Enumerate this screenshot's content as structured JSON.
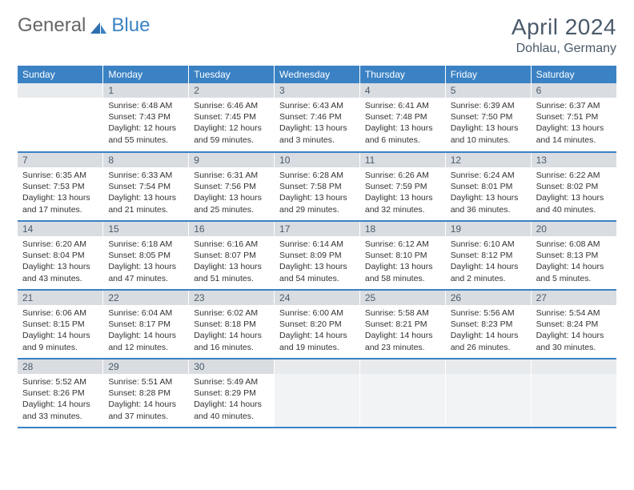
{
  "brand": {
    "part1": "General",
    "part2": "Blue"
  },
  "title": "April 2024",
  "location": "Dohlau, Germany",
  "colors": {
    "header_bg": "#3b82c4",
    "header_text": "#ffffff",
    "daynum_bg": "#d9dde1",
    "rule": "#3b82c4",
    "body_text": "#333333",
    "title_text": "#4a5a6a"
  },
  "weekdays": [
    "Sunday",
    "Monday",
    "Tuesday",
    "Wednesday",
    "Thursday",
    "Friday",
    "Saturday"
  ],
  "weeks": [
    [
      {
        "n": "",
        "sr": "",
        "ss": "",
        "dl": ""
      },
      {
        "n": "1",
        "sr": "Sunrise: 6:48 AM",
        "ss": "Sunset: 7:43 PM",
        "dl": "Daylight: 12 hours and 55 minutes."
      },
      {
        "n": "2",
        "sr": "Sunrise: 6:46 AM",
        "ss": "Sunset: 7:45 PM",
        "dl": "Daylight: 12 hours and 59 minutes."
      },
      {
        "n": "3",
        "sr": "Sunrise: 6:43 AM",
        "ss": "Sunset: 7:46 PM",
        "dl": "Daylight: 13 hours and 3 minutes."
      },
      {
        "n": "4",
        "sr": "Sunrise: 6:41 AM",
        "ss": "Sunset: 7:48 PM",
        "dl": "Daylight: 13 hours and 6 minutes."
      },
      {
        "n": "5",
        "sr": "Sunrise: 6:39 AM",
        "ss": "Sunset: 7:50 PM",
        "dl": "Daylight: 13 hours and 10 minutes."
      },
      {
        "n": "6",
        "sr": "Sunrise: 6:37 AM",
        "ss": "Sunset: 7:51 PM",
        "dl": "Daylight: 13 hours and 14 minutes."
      }
    ],
    [
      {
        "n": "7",
        "sr": "Sunrise: 6:35 AM",
        "ss": "Sunset: 7:53 PM",
        "dl": "Daylight: 13 hours and 17 minutes."
      },
      {
        "n": "8",
        "sr": "Sunrise: 6:33 AM",
        "ss": "Sunset: 7:54 PM",
        "dl": "Daylight: 13 hours and 21 minutes."
      },
      {
        "n": "9",
        "sr": "Sunrise: 6:31 AM",
        "ss": "Sunset: 7:56 PM",
        "dl": "Daylight: 13 hours and 25 minutes."
      },
      {
        "n": "10",
        "sr": "Sunrise: 6:28 AM",
        "ss": "Sunset: 7:58 PM",
        "dl": "Daylight: 13 hours and 29 minutes."
      },
      {
        "n": "11",
        "sr": "Sunrise: 6:26 AM",
        "ss": "Sunset: 7:59 PM",
        "dl": "Daylight: 13 hours and 32 minutes."
      },
      {
        "n": "12",
        "sr": "Sunrise: 6:24 AM",
        "ss": "Sunset: 8:01 PM",
        "dl": "Daylight: 13 hours and 36 minutes."
      },
      {
        "n": "13",
        "sr": "Sunrise: 6:22 AM",
        "ss": "Sunset: 8:02 PM",
        "dl": "Daylight: 13 hours and 40 minutes."
      }
    ],
    [
      {
        "n": "14",
        "sr": "Sunrise: 6:20 AM",
        "ss": "Sunset: 8:04 PM",
        "dl": "Daylight: 13 hours and 43 minutes."
      },
      {
        "n": "15",
        "sr": "Sunrise: 6:18 AM",
        "ss": "Sunset: 8:05 PM",
        "dl": "Daylight: 13 hours and 47 minutes."
      },
      {
        "n": "16",
        "sr": "Sunrise: 6:16 AM",
        "ss": "Sunset: 8:07 PM",
        "dl": "Daylight: 13 hours and 51 minutes."
      },
      {
        "n": "17",
        "sr": "Sunrise: 6:14 AM",
        "ss": "Sunset: 8:09 PM",
        "dl": "Daylight: 13 hours and 54 minutes."
      },
      {
        "n": "18",
        "sr": "Sunrise: 6:12 AM",
        "ss": "Sunset: 8:10 PM",
        "dl": "Daylight: 13 hours and 58 minutes."
      },
      {
        "n": "19",
        "sr": "Sunrise: 6:10 AM",
        "ss": "Sunset: 8:12 PM",
        "dl": "Daylight: 14 hours and 2 minutes."
      },
      {
        "n": "20",
        "sr": "Sunrise: 6:08 AM",
        "ss": "Sunset: 8:13 PM",
        "dl": "Daylight: 14 hours and 5 minutes."
      }
    ],
    [
      {
        "n": "21",
        "sr": "Sunrise: 6:06 AM",
        "ss": "Sunset: 8:15 PM",
        "dl": "Daylight: 14 hours and 9 minutes."
      },
      {
        "n": "22",
        "sr": "Sunrise: 6:04 AM",
        "ss": "Sunset: 8:17 PM",
        "dl": "Daylight: 14 hours and 12 minutes."
      },
      {
        "n": "23",
        "sr": "Sunrise: 6:02 AM",
        "ss": "Sunset: 8:18 PM",
        "dl": "Daylight: 14 hours and 16 minutes."
      },
      {
        "n": "24",
        "sr": "Sunrise: 6:00 AM",
        "ss": "Sunset: 8:20 PM",
        "dl": "Daylight: 14 hours and 19 minutes."
      },
      {
        "n": "25",
        "sr": "Sunrise: 5:58 AM",
        "ss": "Sunset: 8:21 PM",
        "dl": "Daylight: 14 hours and 23 minutes."
      },
      {
        "n": "26",
        "sr": "Sunrise: 5:56 AM",
        "ss": "Sunset: 8:23 PM",
        "dl": "Daylight: 14 hours and 26 minutes."
      },
      {
        "n": "27",
        "sr": "Sunrise: 5:54 AM",
        "ss": "Sunset: 8:24 PM",
        "dl": "Daylight: 14 hours and 30 minutes."
      }
    ],
    [
      {
        "n": "28",
        "sr": "Sunrise: 5:52 AM",
        "ss": "Sunset: 8:26 PM",
        "dl": "Daylight: 14 hours and 33 minutes."
      },
      {
        "n": "29",
        "sr": "Sunrise: 5:51 AM",
        "ss": "Sunset: 8:28 PM",
        "dl": "Daylight: 14 hours and 37 minutes."
      },
      {
        "n": "30",
        "sr": "Sunrise: 5:49 AM",
        "ss": "Sunset: 8:29 PM",
        "dl": "Daylight: 14 hours and 40 minutes."
      },
      {
        "n": "",
        "sr": "",
        "ss": "",
        "dl": "",
        "trailing": true
      },
      {
        "n": "",
        "sr": "",
        "ss": "",
        "dl": "",
        "trailing": true
      },
      {
        "n": "",
        "sr": "",
        "ss": "",
        "dl": "",
        "trailing": true
      },
      {
        "n": "",
        "sr": "",
        "ss": "",
        "dl": "",
        "trailing": true
      }
    ]
  ]
}
